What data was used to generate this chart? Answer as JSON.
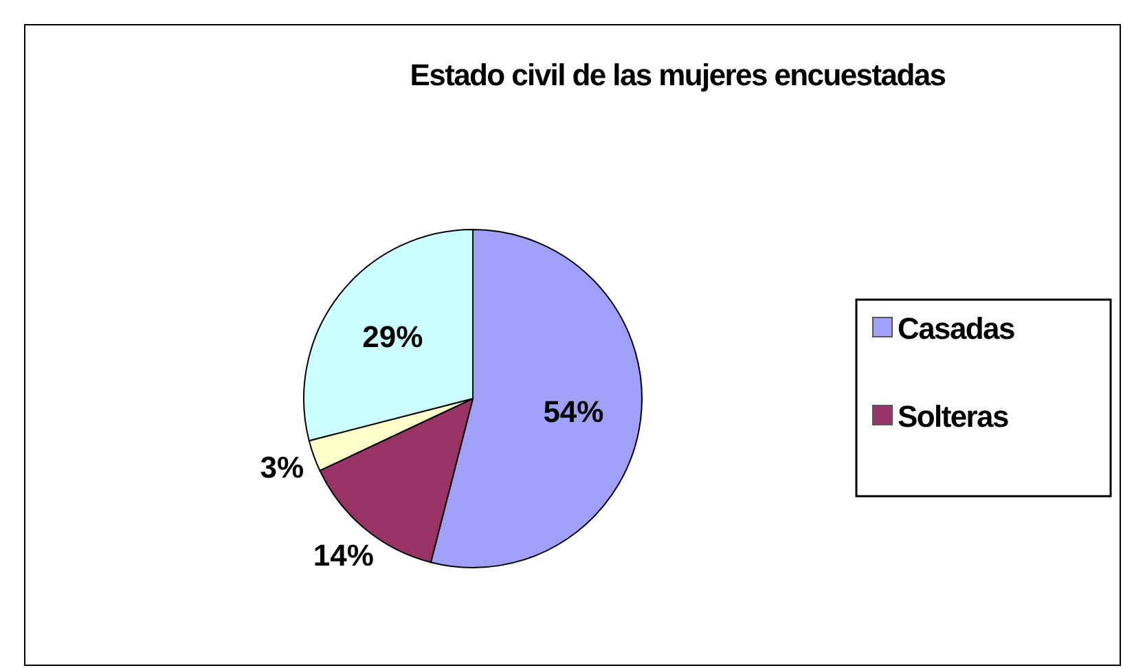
{
  "chart_data": {
    "type": "pie",
    "title": "Estado civil de las mujeres encuestadas",
    "categories": [
      "Casadas",
      "Solteras",
      null,
      null
    ],
    "values": [
      54,
      14,
      3,
      29
    ],
    "colors": [
      "#a0a0f8",
      "#993366",
      "#ffffcc",
      "#ccffff"
    ],
    "value_labels": [
      "54%",
      "14%",
      "3%",
      "29%"
    ],
    "legend": "right"
  }
}
